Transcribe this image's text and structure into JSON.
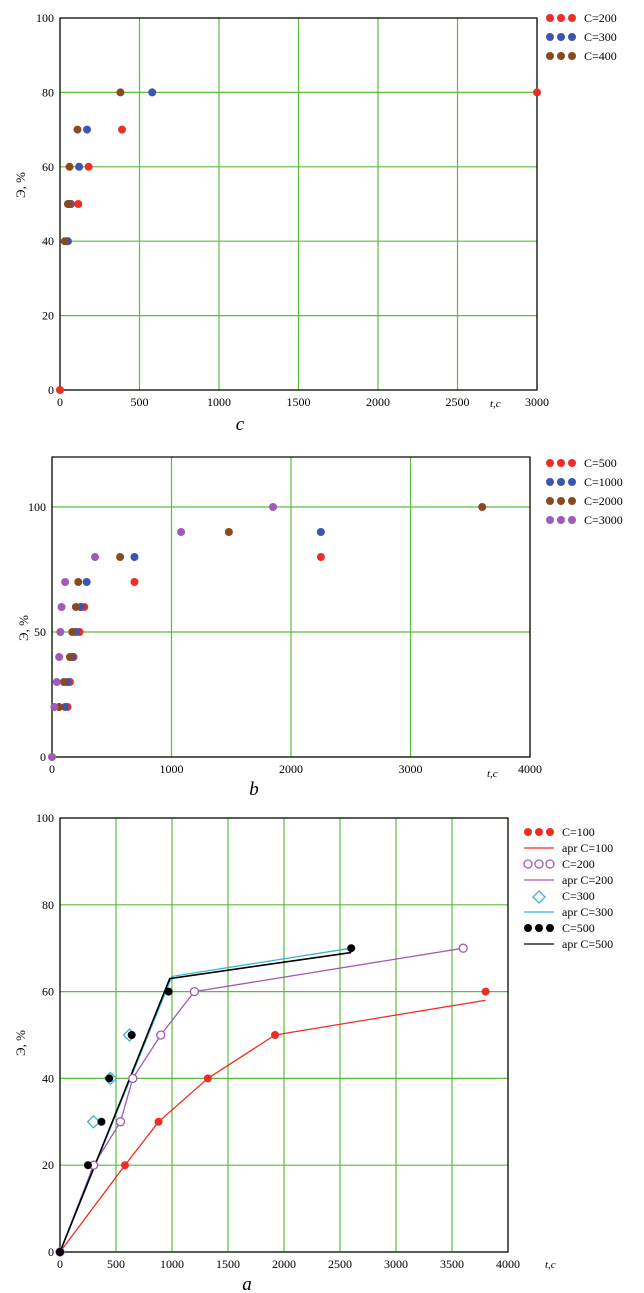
{
  "chart_data": [
    {
      "type": "scatter",
      "caption": "c",
      "ylabel": "Э, %",
      "xunit": "t,c",
      "xlim": [
        0,
        3000
      ],
      "ylim": [
        0,
        100
      ],
      "xticks": [
        "0",
        "500",
        "1000",
        "1500",
        "2000",
        "2500",
        "3000"
      ],
      "yticks": [
        "0",
        "20",
        "40",
        "60",
        "80",
        "100"
      ],
      "grid": true,
      "legend_position": "top-right",
      "series": [
        {
          "name": "C=200",
          "color": "#ee2e24",
          "marker": "filled-circle",
          "points": [
            [
              0,
              0
            ],
            [
              40,
              40
            ],
            [
              70,
              50
            ],
            [
              115,
              50
            ],
            [
              180,
              60
            ],
            [
              390,
              70
            ],
            [
              3000,
              80
            ]
          ]
        },
        {
          "name": "C=300",
          "color": "#3a56b0",
          "marker": "filled-circle",
          "points": [
            [
              50,
              40
            ],
            [
              60,
              50
            ],
            [
              120,
              60
            ],
            [
              170,
              70
            ],
            [
              580,
              80
            ]
          ]
        },
        {
          "name": "C=400",
          "color": "#8b4a1e",
          "marker": "filled-circle",
          "points": [
            [
              30,
              40
            ],
            [
              50,
              50
            ],
            [
              60,
              60
            ],
            [
              110,
              70
            ],
            [
              380,
              80
            ]
          ]
        }
      ]
    },
    {
      "type": "scatter",
      "caption": "b",
      "ylabel": "Э, %",
      "xunit": "t,c",
      "xlim": [
        0,
        4000
      ],
      "ylim": [
        0,
        120
      ],
      "xticks": [
        "0",
        "1000",
        "2000",
        "3000",
        "4000"
      ],
      "yticks": [
        "0",
        "50",
        "100"
      ],
      "grid": true,
      "legend_position": "top-right",
      "series": [
        {
          "name": "C=500",
          "color": "#ee2e24",
          "marker": "filled-circle",
          "points": [
            [
              130,
              20
            ],
            [
              150,
              30
            ],
            [
              180,
              40
            ],
            [
              230,
              50
            ],
            [
              270,
              60
            ],
            [
              690,
              70
            ],
            [
              2250,
              80
            ]
          ]
        },
        {
          "name": "C=1000",
          "color": "#3a56b0",
          "marker": "filled-circle",
          "points": [
            [
              110,
              20
            ],
            [
              130,
              30
            ],
            [
              170,
              40
            ],
            [
              200,
              50
            ],
            [
              240,
              60
            ],
            [
              290,
              70
            ],
            [
              690,
              80
            ],
            [
              2250,
              90
            ]
          ]
        },
        {
          "name": "C=2000",
          "color": "#8b4a1e",
          "marker": "filled-circle",
          "points": [
            [
              60,
              20
            ],
            [
              100,
              30
            ],
            [
              150,
              40
            ],
            [
              170,
              50
            ],
            [
              200,
              60
            ],
            [
              220,
              70
            ],
            [
              570,
              80
            ],
            [
              1480,
              90
            ],
            [
              3600,
              100
            ]
          ]
        },
        {
          "name": "C=3000",
          "color": "#a05ab8",
          "marker": "filled-circle",
          "points": [
            [
              0,
              0
            ],
            [
              20,
              20
            ],
            [
              40,
              30
            ],
            [
              60,
              40
            ],
            [
              70,
              50
            ],
            [
              80,
              60
            ],
            [
              110,
              70
            ],
            [
              360,
              80
            ],
            [
              1080,
              90
            ],
            [
              1850,
              100
            ]
          ]
        }
      ]
    },
    {
      "type": "line",
      "caption": "a",
      "ylabel": "Э, %",
      "xunit": "t,c",
      "xlim": [
        0,
        4000
      ],
      "ylim": [
        0,
        100
      ],
      "xticks": [
        "0",
        "500",
        "1000",
        "1500",
        "2000",
        "2500",
        "3000",
        "3500",
        "4000"
      ],
      "yticks": [
        "0",
        "20",
        "40",
        "60",
        "80",
        "100"
      ],
      "grid": true,
      "legend_position": "right",
      "series": [
        {
          "name": "C=100",
          "kind": "points",
          "color": "#ee2e24",
          "marker": "filled-circle",
          "points": [
            [
              0,
              0
            ],
            [
              580,
              20
            ],
            [
              880,
              30
            ],
            [
              1320,
              40
            ],
            [
              1920,
              50
            ],
            [
              3800,
              60
            ]
          ]
        },
        {
          "name": "apr C=100",
          "kind": "line",
          "color": "#ee2e24",
          "points": [
            [
              0,
              0
            ],
            [
              580,
              20
            ],
            [
              880,
              30
            ],
            [
              1320,
              40
            ],
            [
              1920,
              50
            ],
            [
              3800,
              58
            ]
          ]
        },
        {
          "name": "C=200",
          "kind": "points",
          "color": "#a05ab8",
          "marker": "open-circle",
          "points": [
            [
              0,
              0
            ],
            [
              300,
              20
            ],
            [
              540,
              30
            ],
            [
              650,
              40
            ],
            [
              900,
              50
            ],
            [
              1200,
              60
            ],
            [
              3600,
              70
            ]
          ]
        },
        {
          "name": "apr C=200",
          "kind": "line",
          "color": "#a05ab8",
          "points": [
            [
              0,
              0
            ],
            [
              300,
              20
            ],
            [
              540,
              30
            ],
            [
              650,
              40
            ],
            [
              900,
              50
            ],
            [
              1200,
              60
            ],
            [
              3600,
              70
            ]
          ]
        },
        {
          "name": "C=300",
          "kind": "points",
          "color": "#3ab5d0",
          "marker": "open-diamond",
          "points": [
            [
              300,
              30
            ],
            [
              450,
              40
            ],
            [
              620,
              50
            ]
          ]
        },
        {
          "name": "apr C=300",
          "kind": "line",
          "color": "#3ab5d0",
          "points": [
            [
              0,
              0
            ],
            [
              1000,
              63.5
            ],
            [
              2600,
              70
            ]
          ]
        },
        {
          "name": "C=500",
          "kind": "points",
          "color": "#000000",
          "marker": "filled-circle",
          "points": [
            [
              0,
              0
            ],
            [
              250,
              20
            ],
            [
              370,
              30
            ],
            [
              440,
              40
            ],
            [
              640,
              50
            ],
            [
              970,
              60
            ],
            [
              2600,
              70
            ]
          ]
        },
        {
          "name": "apr C=500",
          "kind": "line",
          "color": "#000000",
          "points": [
            [
              0,
              0
            ],
            [
              980,
              63
            ],
            [
              2600,
              69
            ]
          ]
        }
      ]
    }
  ]
}
